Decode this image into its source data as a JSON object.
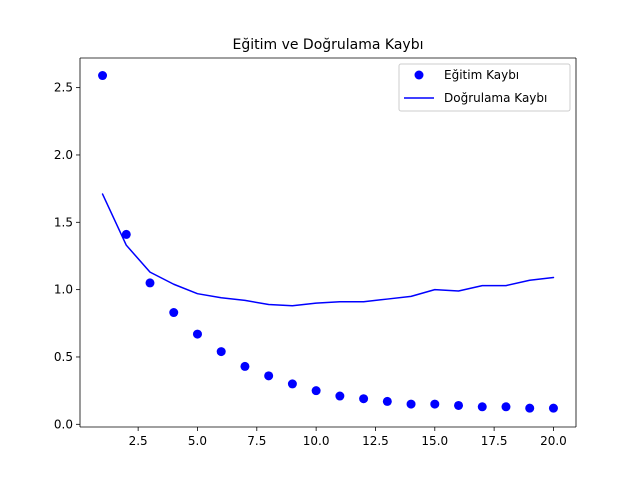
{
  "chart_data": {
    "type": "line",
    "title": "Eğitim ve Doğrulama Kaybı",
    "xlabel": "",
    "ylabel": "",
    "xlim": [
      0.05,
      20.95
    ],
    "ylim": [
      -0.02,
      2.72
    ],
    "x_ticks": [
      2.5,
      5.0,
      7.5,
      10.0,
      12.5,
      15.0,
      17.5,
      20.0
    ],
    "x_tick_labels": [
      "2.5",
      "5.0",
      "7.5",
      "10.0",
      "12.5",
      "15.0",
      "17.5",
      "20.0"
    ],
    "y_ticks": [
      0.0,
      0.5,
      1.0,
      1.5,
      2.0,
      2.5
    ],
    "y_tick_labels": [
      "0.0",
      "0.5",
      "1.0",
      "1.5",
      "2.0",
      "2.5"
    ],
    "grid": false,
    "legend_position": "top-right",
    "x": [
      1,
      2,
      3,
      4,
      5,
      6,
      7,
      8,
      9,
      10,
      11,
      12,
      13,
      14,
      15,
      16,
      17,
      18,
      19,
      20
    ],
    "series": [
      {
        "name": "Eğitim Kaybı",
        "style": "scatter",
        "color": "#0000ff",
        "values": [
          2.59,
          1.41,
          1.05,
          0.83,
          0.67,
          0.54,
          0.43,
          0.36,
          0.3,
          0.25,
          0.21,
          0.19,
          0.17,
          0.15,
          0.15,
          0.14,
          0.13,
          0.13,
          0.12,
          0.12
        ]
      },
      {
        "name": "Doğrulama Kaybı",
        "style": "line",
        "color": "#0000ff",
        "values": [
          1.71,
          1.33,
          1.13,
          1.04,
          0.97,
          0.94,
          0.92,
          0.89,
          0.88,
          0.9,
          0.91,
          0.91,
          0.93,
          0.95,
          1.0,
          0.99,
          1.03,
          1.03,
          1.07,
          1.09
        ]
      }
    ]
  }
}
